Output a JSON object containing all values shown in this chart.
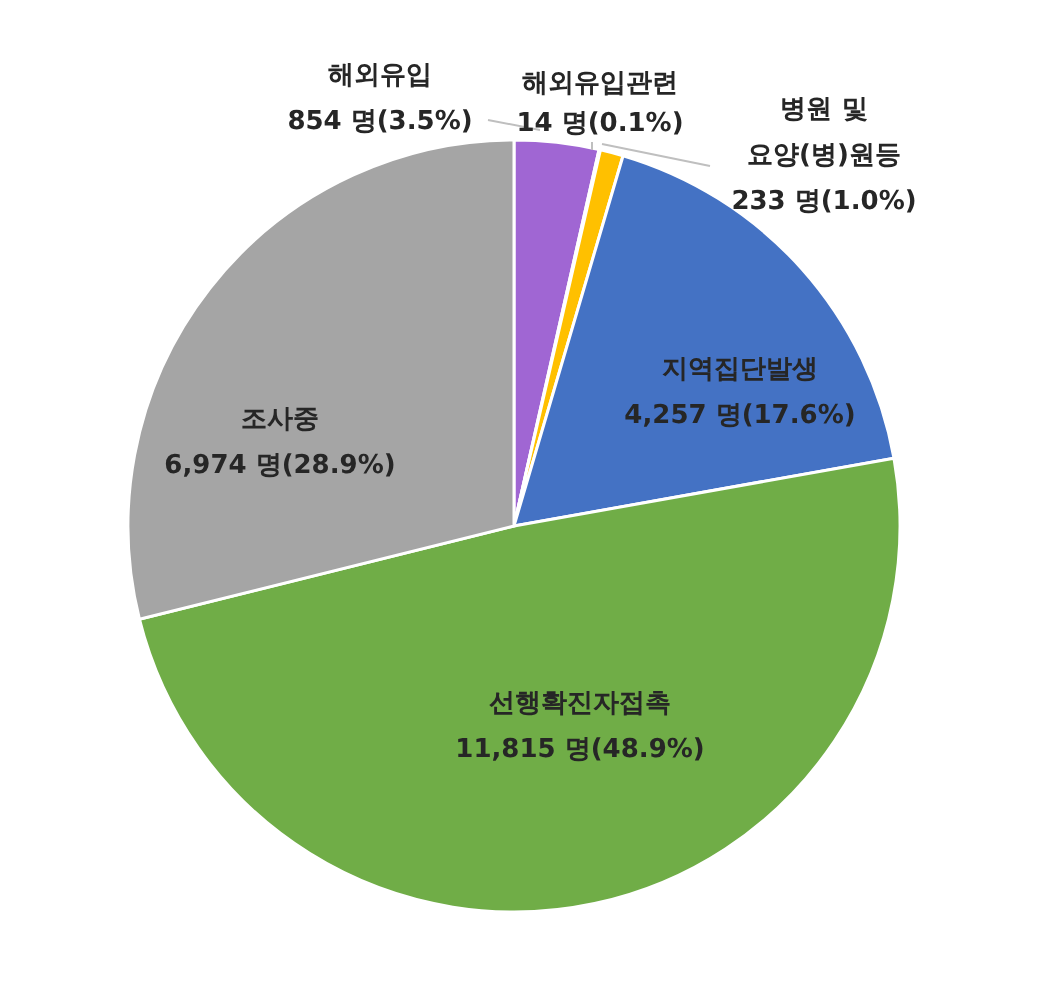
{
  "chart_data": {
    "type": "pie",
    "categories": [
      "해외유입",
      "해외유입관련",
      "병원 및 요양(병)원등",
      "지역집단발생",
      "선행확진자접촉",
      "조사중"
    ],
    "values": [
      854,
      14,
      233,
      4257,
      11815,
      6974
    ],
    "value_labels": [
      "854 명(3.5%)",
      "14 명(0.1%)",
      "233 명(1.0%)",
      "4,257 명(17.6%)",
      "11,815 명(48.9%)",
      "6,974 명(28.9%)"
    ],
    "colors": [
      "#a066d3",
      "#ed7d31",
      "#ffc000",
      "#4472c4",
      "#70ad47",
      "#a5a5a5"
    ],
    "legend": false
  }
}
